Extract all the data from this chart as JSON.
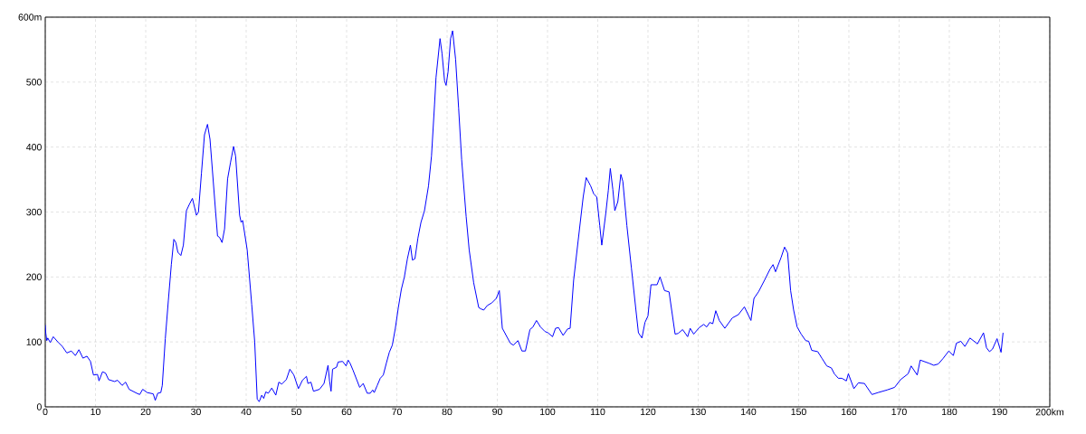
{
  "chart_data": {
    "type": "line",
    "color": "#0000ff",
    "grid": true,
    "xlim": [
      0,
      200
    ],
    "ylim": [
      0,
      600
    ],
    "xticks": [
      0,
      10,
      20,
      30,
      40,
      50,
      60,
      70,
      80,
      90,
      100,
      110,
      120,
      130,
      140,
      150,
      160,
      170,
      180,
      190,
      {
        "value": 200,
        "label": "200km"
      }
    ],
    "yticks": [
      0,
      100,
      200,
      300,
      400,
      500,
      {
        "value": 600,
        "label": "600m"
      }
    ],
    "x": [
      0,
      0.1,
      0.3,
      0.5,
      1.0,
      1.6,
      2.5,
      3.4,
      4.3,
      5.2,
      6.0,
      6.7,
      7.5,
      8.3,
      9.0,
      9.6,
      10.4,
      10.7,
      11.4,
      12.0,
      12.6,
      13.8,
      14.4,
      15.3,
      16.0,
      16.7,
      18.2,
      18.8,
      19.4,
      20.3,
      21.5,
      21.9,
      22.4,
      23.0,
      23.3,
      23.9,
      24.5,
      25.1,
      25.6,
      26.0,
      26.4,
      27.0,
      27.5,
      28.1,
      28.7,
      29.3,
      30.1,
      30.5,
      31.1,
      31.7,
      32.3,
      32.8,
      33.9,
      34.3,
      34.7,
      35.2,
      35.7,
      36.3,
      36.9,
      37.5,
      37.9,
      38.7,
      39.0,
      39.3,
      40.2,
      41.1,
      41.7,
      42.2,
      42.6,
      43.1,
      43.5,
      43.9,
      44.4,
      45.1,
      45.9,
      46.5,
      47.1,
      48.0,
      48.7,
      49.5,
      50.4,
      51.2,
      52.0,
      52.3,
      52.9,
      53.4,
      54.6,
      55.5,
      56.3,
      56.6,
      56.9,
      57.2,
      58.0,
      58.3,
      59.2,
      59.9,
      60.3,
      60.7,
      61.3,
      62.6,
      63.3,
      64.1,
      64.7,
      65.2,
      65.5,
      66.1,
      66.7,
      67.3,
      67.9,
      68.5,
      69.1,
      69.7,
      70.3,
      70.9,
      71.5,
      72.1,
      72.7,
      73.1,
      73.6,
      74.2,
      74.8,
      75.5,
      76.3,
      76.9,
      77.5,
      77.8,
      78.6,
      79.0,
      79.5,
      79.8,
      80.2,
      80.7,
      81.1,
      81.7,
      82.3,
      82.9,
      83.8,
      84.4,
      85.3,
      86.3,
      86.7,
      87.3,
      88.0,
      88.9,
      89.8,
      90.4,
      91.0,
      92.6,
      93.2,
      94.1,
      94.9,
      95.6,
      96.5,
      97.1,
      97.8,
      98.6,
      99.5,
      100.1,
      101.0,
      101.6,
      102.2,
      103.1,
      104.0,
      104.5,
      105.2,
      106.1,
      107.1,
      107.7,
      108.6,
      109.2,
      109.8,
      110.4,
      110.8,
      111.6,
      112.1,
      112.5,
      113.0,
      113.4,
      114.0,
      114.6,
      115.0,
      115.8,
      116.7,
      117.6,
      118.1,
      118.8,
      119.4,
      120.0,
      120.6,
      121.8,
      122.4,
      123.3,
      124.2,
      125.4,
      126.0,
      126.9,
      127.9,
      128.4,
      129.1,
      130.2,
      131.1,
      131.7,
      132.3,
      132.9,
      133.5,
      134.2,
      135.3,
      136.8,
      138.0,
      139.2,
      140.5,
      141.1,
      142.0,
      143.2,
      144.3,
      144.9,
      145.4,
      146.5,
      147.2,
      147.8,
      148.4,
      149.0,
      149.7,
      150.5,
      151.4,
      152.0,
      152.6,
      153.8,
      154.7,
      155.6,
      156.5,
      157.1,
      157.9,
      158.6,
      159.5,
      159.9,
      161.0,
      161.9,
      163.1,
      164.6,
      165.8,
      167.6,
      169.1,
      170.3,
      171.8,
      172.4,
      173.6,
      174.2,
      176.0,
      176.9,
      177.8,
      178.7,
      179.9,
      180.8,
      181.4,
      182.3,
      183.1,
      184.1,
      185.6,
      186.8,
      187.4,
      188.0,
      188.6,
      189.5,
      190.3,
      190.7
    ],
    "values": [
      126,
      114,
      102,
      106,
      99,
      108,
      100,
      93,
      83,
      86,
      79,
      88,
      75,
      78,
      70,
      49,
      50,
      40,
      54,
      52,
      42,
      39,
      41,
      33,
      38,
      27,
      21,
      19,
      27,
      22,
      20,
      10,
      21,
      22,
      33,
      105,
      163,
      219,
      258,
      253,
      238,
      233,
      249,
      302,
      312,
      321,
      295,
      300,
      360,
      419,
      435,
      412,
      302,
      263,
      261,
      253,
      274,
      351,
      377,
      401,
      386,
      295,
      284,
      287,
      242,
      158,
      100,
      12,
      8,
      18,
      13,
      23,
      21,
      29,
      18,
      38,
      35,
      42,
      58,
      49,
      28,
      41,
      47,
      36,
      38,
      24,
      27,
      36,
      64,
      40,
      24,
      58,
      61,
      69,
      70,
      63,
      72,
      67,
      56,
      30,
      36,
      21,
      21,
      26,
      22,
      33,
      44,
      49,
      67,
      84,
      95,
      121,
      153,
      181,
      200,
      228,
      249,
      226,
      228,
      260,
      284,
      302,
      340,
      386,
      465,
      507,
      567,
      544,
      502,
      495,
      516,
      567,
      579,
      535,
      460,
      381,
      293,
      242,
      191,
      153,
      151,
      149,
      156,
      160,
      167,
      179,
      121,
      98,
      95,
      102,
      86,
      86,
      119,
      123,
      133,
      123,
      116,
      114,
      108,
      121,
      122,
      110,
      120,
      121,
      195,
      256,
      323,
      353,
      340,
      328,
      323,
      279,
      249,
      298,
      333,
      367,
      335,
      302,
      316,
      358,
      347,
      279,
      214,
      149,
      114,
      106,
      130,
      140,
      188,
      188,
      200,
      179,
      177,
      112,
      113,
      119,
      108,
      121,
      112,
      122,
      127,
      123,
      130,
      128,
      148,
      133,
      121,
      137,
      142,
      154,
      133,
      167,
      177,
      195,
      212,
      219,
      208,
      230,
      246,
      237,
      179,
      149,
      123,
      112,
      102,
      101,
      87,
      85,
      74,
      63,
      60,
      51,
      44,
      44,
      40,
      51,
      28,
      37,
      36,
      19,
      22,
      26,
      30,
      42,
      51,
      63,
      49,
      72,
      67,
      64,
      66,
      74,
      86,
      79,
      98,
      101,
      93,
      106,
      97,
      114,
      91,
      85,
      89,
      105,
      84,
      114
    ]
  }
}
